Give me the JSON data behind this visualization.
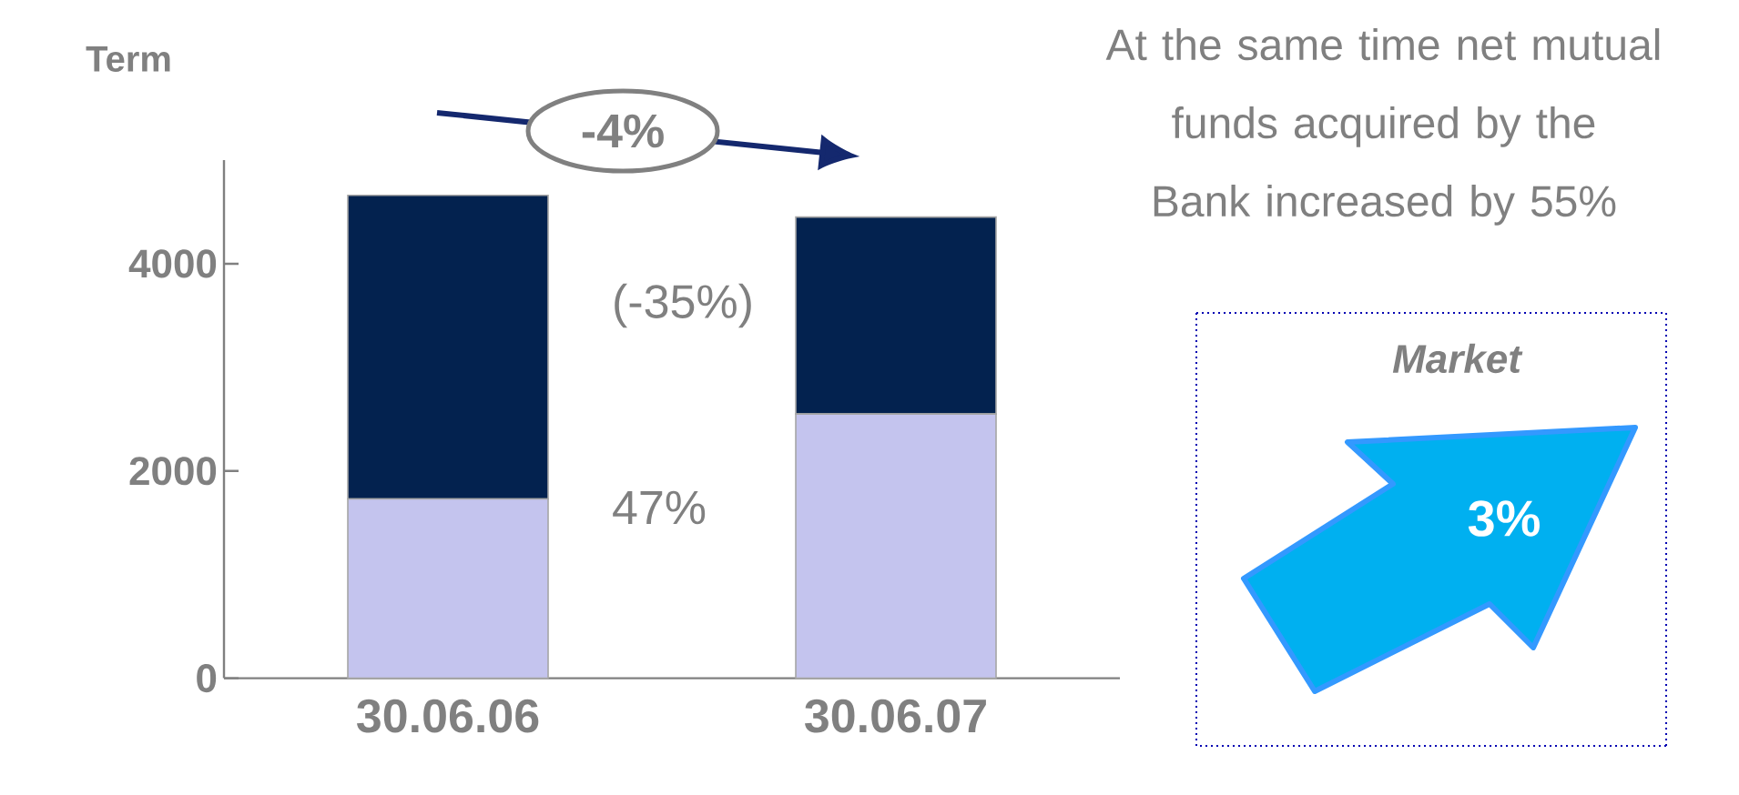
{
  "chart_data": {
    "type": "bar",
    "stacked": true,
    "ylabel": "Term",
    "categories": [
      "30.06.06",
      "30.06.07"
    ],
    "series": [
      {
        "color": "#c4c4ee",
        "values": [
          1730,
          2550
        ]
      },
      {
        "color": "#03224f",
        "values": [
          2930,
          1900
        ]
      }
    ],
    "ylim": [
      0,
      5000
    ],
    "yticks": [
      0,
      2000,
      4000
    ],
    "annotations": [
      "-4%",
      "(-35%)",
      "47%",
      "At the same time net mutual funds acquired by the Bank increased by 55%",
      "Market",
      "3%"
    ]
  }
}
